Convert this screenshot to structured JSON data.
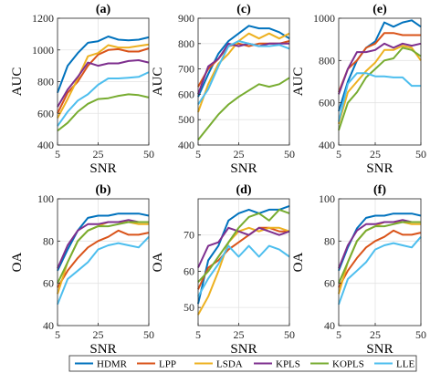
{
  "legend": {
    "items": [
      {
        "label": "HDMR",
        "color": "#0072BD"
      },
      {
        "label": "LPP",
        "color": "#D95319"
      },
      {
        "label": "LSDA",
        "color": "#EDB120"
      },
      {
        "label": "KPLS",
        "color": "#7E2F8E"
      },
      {
        "label": "KOPLS",
        "color": "#77AC30"
      },
      {
        "label": "LLE",
        "color": "#4DBEEE"
      }
    ]
  },
  "chart_data": [
    {
      "type": "line",
      "title": "(a)",
      "xlabel": "SNR",
      "ylabel": "AUC",
      "x": [
        5,
        10,
        15,
        20,
        25,
        30,
        35,
        40,
        45,
        50
      ],
      "xlim": [
        5,
        50
      ],
      "xticks": [
        5,
        25,
        50
      ],
      "ylim": [
        400,
        1200
      ],
      "yticks": [
        400,
        600,
        800,
        1000,
        1200
      ],
      "series": [
        {
          "name": "HDMR",
          "values": [
            730,
            900,
            980,
            1045,
            1055,
            1085,
            1065,
            1060,
            1065,
            1080
          ]
        },
        {
          "name": "LPP",
          "values": [
            600,
            730,
            800,
            900,
            970,
            1000,
            1005,
            990,
            990,
            1010
          ]
        },
        {
          "name": "LSDA",
          "values": [
            570,
            690,
            820,
            960,
            980,
            1030,
            1015,
            1015,
            1025,
            1035
          ]
        },
        {
          "name": "KPLS",
          "values": [
            640,
            750,
            830,
            920,
            900,
            915,
            915,
            930,
            935,
            920
          ]
        },
        {
          "name": "KOPLS",
          "values": [
            490,
            540,
            610,
            660,
            690,
            695,
            710,
            720,
            715,
            700
          ]
        },
        {
          "name": "LLE",
          "values": [
            520,
            610,
            680,
            720,
            780,
            820,
            820,
            825,
            830,
            860
          ]
        }
      ]
    },
    {
      "type": "line",
      "title": "(c)",
      "xlabel": "SNR",
      "ylabel": "AUC",
      "x": [
        5,
        10,
        15,
        20,
        25,
        30,
        35,
        40,
        45,
        50
      ],
      "xlim": [
        5,
        50
      ],
      "xticks": [
        5,
        25,
        50
      ],
      "ylim": [
        400,
        900
      ],
      "yticks": [
        400,
        500,
        600,
        700,
        800,
        900
      ],
      "series": [
        {
          "name": "HDMR",
          "values": [
            590,
            680,
            760,
            810,
            840,
            870,
            860,
            860,
            845,
            820
          ]
        },
        {
          "name": "LPP",
          "values": [
            630,
            700,
            740,
            790,
            800,
            790,
            800,
            800,
            800,
            810
          ]
        },
        {
          "name": "LSDA",
          "values": [
            530,
            640,
            720,
            760,
            810,
            840,
            820,
            840,
            820,
            840
          ]
        },
        {
          "name": "KPLS",
          "values": [
            600,
            710,
            740,
            800,
            790,
            800,
            790,
            800,
            800,
            800
          ]
        },
        {
          "name": "KOPLS",
          "values": [
            420,
            470,
            520,
            560,
            590,
            615,
            640,
            630,
            640,
            665
          ]
        },
        {
          "name": "LLE",
          "values": [
            560,
            620,
            710,
            790,
            810,
            800,
            790,
            790,
            795,
            780
          ]
        }
      ]
    },
    {
      "type": "line",
      "title": "(e)",
      "xlabel": "SNR",
      "ylabel": "AUC",
      "x": [
        5,
        10,
        15,
        20,
        25,
        30,
        35,
        40,
        45,
        50
      ],
      "xlim": [
        5,
        50
      ],
      "xticks": [
        5,
        25,
        50
      ],
      "ylim": [
        400,
        1000
      ],
      "yticks": [
        400,
        600,
        800,
        1000
      ],
      "series": [
        {
          "name": "HDMR",
          "values": [
            560,
            700,
            800,
            860,
            890,
            980,
            960,
            980,
            990,
            960
          ]
        },
        {
          "name": "LPP",
          "values": [
            650,
            760,
            800,
            860,
            880,
            930,
            930,
            920,
            920,
            920
          ]
        },
        {
          "name": "LSDA",
          "values": [
            500,
            650,
            700,
            750,
            790,
            850,
            850,
            870,
            860,
            800
          ]
        },
        {
          "name": "KPLS",
          "values": [
            640,
            760,
            840,
            840,
            850,
            880,
            860,
            880,
            870,
            880
          ]
        },
        {
          "name": "KOPLS",
          "values": [
            470,
            600,
            650,
            720,
            760,
            800,
            810,
            860,
            850,
            820
          ]
        },
        {
          "name": "LLE",
          "values": [
            510,
            690,
            740,
            740,
            725,
            725,
            720,
            720,
            680,
            680
          ]
        }
      ]
    },
    {
      "type": "line",
      "title": "(b)",
      "xlabel": "SNR",
      "ylabel": "OA",
      "x": [
        5,
        10,
        15,
        20,
        25,
        30,
        35,
        40,
        45,
        50
      ],
      "xlim": [
        5,
        50
      ],
      "xticks": [
        5,
        25,
        50
      ],
      "ylim": [
        40,
        100
      ],
      "yticks": [
        40,
        60,
        80,
        100
      ],
      "series": [
        {
          "name": "HDMR",
          "values": [
            66,
            76,
            85,
            91,
            92,
            92,
            93,
            93,
            93,
            92
          ]
        },
        {
          "name": "LPP",
          "values": [
            58,
            66,
            72,
            77,
            80,
            82,
            85,
            83,
            83,
            84
          ]
        },
        {
          "name": "LSDA",
          "values": [
            55,
            70,
            80,
            85,
            87,
            89,
            89,
            89,
            88,
            88
          ]
        },
        {
          "name": "KPLS",
          "values": [
            67,
            78,
            85,
            88,
            88,
            89,
            89,
            90,
            89,
            89
          ]
        },
        {
          "name": "KOPLS",
          "values": [
            60,
            70,
            80,
            85,
            87,
            87,
            88,
            89,
            89,
            89
          ]
        },
        {
          "name": "LLE",
          "values": [
            50,
            62,
            66,
            70,
            76,
            78,
            79,
            78,
            77,
            82
          ]
        }
      ]
    },
    {
      "type": "line",
      "title": "(d)",
      "xlabel": "SNR",
      "ylabel": "OA",
      "x": [
        5,
        10,
        15,
        20,
        25,
        30,
        35,
        40,
        45,
        50
      ],
      "xlim": [
        5,
        50
      ],
      "xticks": [
        5,
        25,
        50
      ],
      "ylim": [
        45,
        80
      ],
      "yticks": [
        50,
        60,
        70
      ],
      "series": [
        {
          "name": "HDMR",
          "values": [
            51,
            63,
            67,
            74,
            76,
            77,
            76,
            77,
            77,
            78
          ]
        },
        {
          "name": "LPP",
          "values": [
            55,
            61,
            63,
            66,
            68,
            70,
            72,
            72,
            71,
            71
          ]
        },
        {
          "name": "LSDA",
          "values": [
            48,
            53,
            60,
            68,
            71,
            72,
            71,
            72,
            72,
            71
          ]
        },
        {
          "name": "KPLS",
          "values": [
            61,
            67,
            68,
            72,
            71,
            70,
            72,
            71,
            70,
            71
          ]
        },
        {
          "name": "KOPLS",
          "values": [
            57,
            60,
            64,
            68,
            72,
            75,
            76,
            74,
            77,
            76
          ]
        },
        {
          "name": "LLE",
          "values": [
            53,
            58,
            62,
            67,
            64,
            67,
            64,
            67,
            66,
            64
          ]
        }
      ]
    },
    {
      "type": "line",
      "title": "(f)",
      "xlabel": "SNR",
      "ylabel": "OA",
      "x": [
        5,
        10,
        15,
        20,
        25,
        30,
        35,
        40,
        45,
        50
      ],
      "xlim": [
        5,
        50
      ],
      "xticks": [
        5,
        25,
        50
      ],
      "ylim": [
        40,
        100
      ],
      "yticks": [
        40,
        60,
        80,
        100
      ],
      "series": [
        {
          "name": "HDMR",
          "values": [
            66,
            77,
            86,
            91,
            92,
            92,
            93,
            93,
            93,
            92
          ]
        },
        {
          "name": "LPP",
          "values": [
            58,
            66,
            72,
            77,
            80,
            82,
            85,
            83,
            83,
            84
          ]
        },
        {
          "name": "LSDA",
          "values": [
            55,
            70,
            80,
            85,
            87,
            89,
            89,
            89,
            88,
            88
          ]
        },
        {
          "name": "KPLS",
          "values": [
            67,
            78,
            85,
            88,
            88,
            89,
            89,
            90,
            89,
            89
          ]
        },
        {
          "name": "KOPLS",
          "values": [
            60,
            70,
            80,
            85,
            87,
            87,
            88,
            89,
            89,
            89
          ]
        },
        {
          "name": "LLE",
          "values": [
            50,
            62,
            66,
            70,
            76,
            78,
            79,
            78,
            77,
            82
          ]
        }
      ]
    }
  ]
}
